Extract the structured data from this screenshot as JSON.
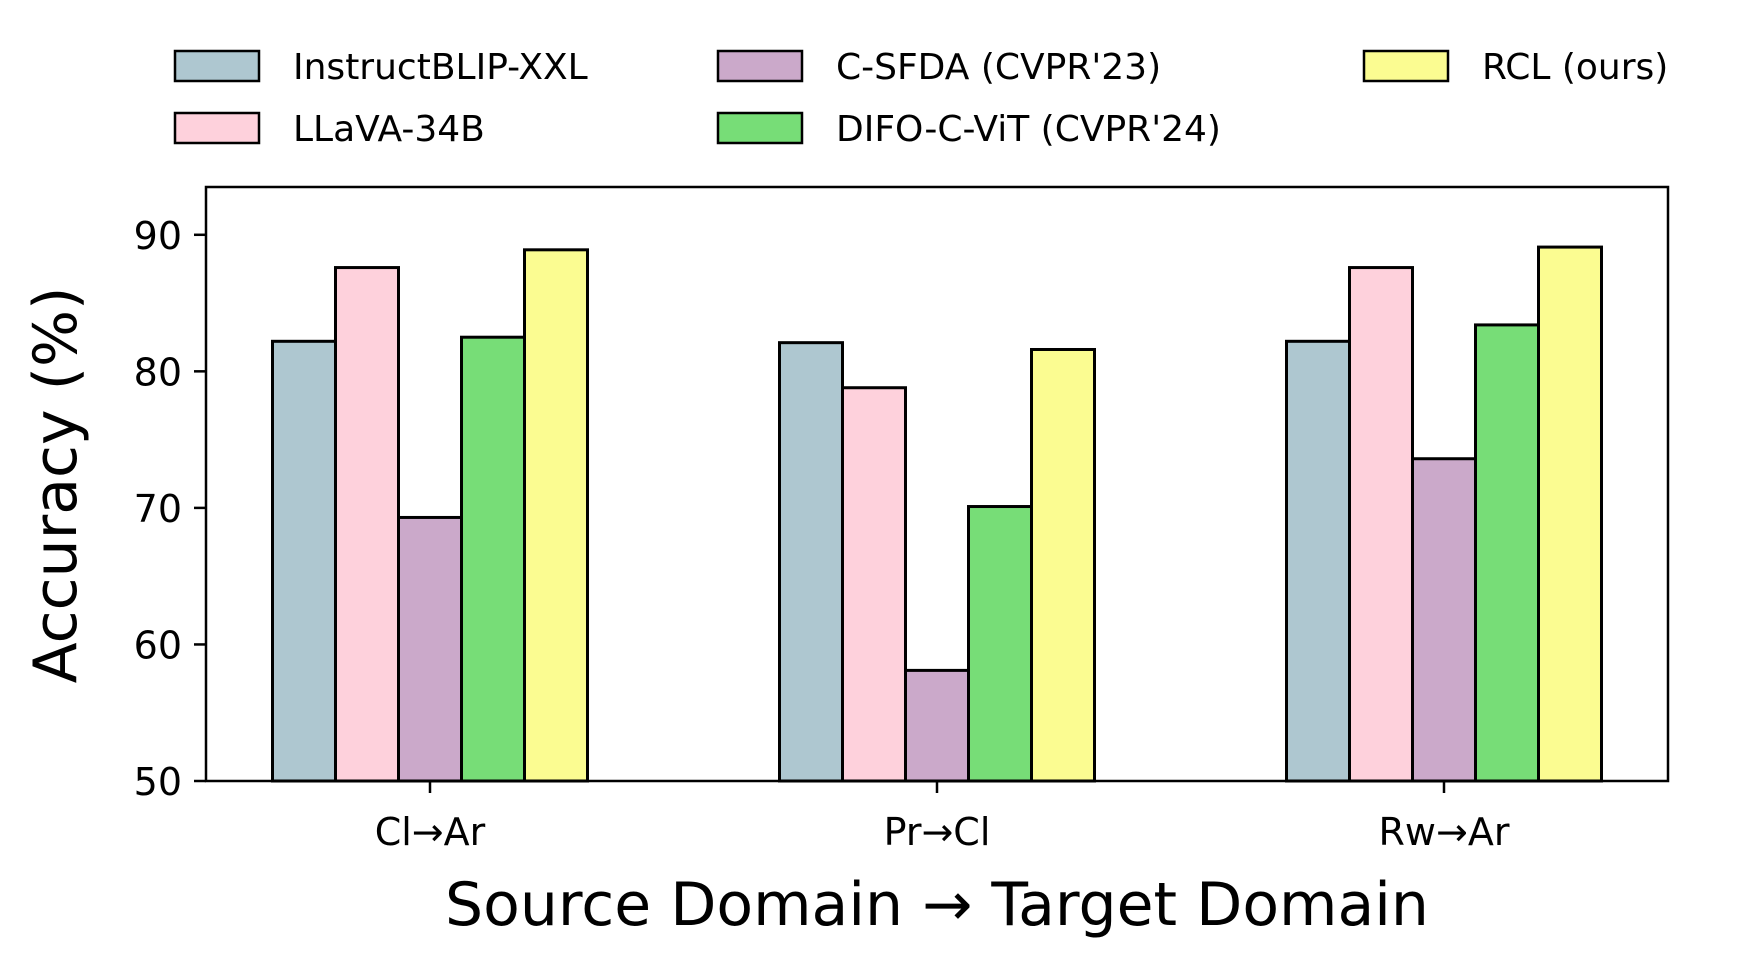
{
  "chart_data": {
    "type": "bar",
    "title": "",
    "xlabel": "Source Domain → Target Domain",
    "ylabel": "Accuracy (%)",
    "ylim": [
      50,
      93.5
    ],
    "yticks": [
      50,
      60,
      70,
      80,
      90
    ],
    "categories": [
      "Cl→Ar",
      "Pr→Cl",
      "Rw→Ar"
    ],
    "series": [
      {
        "name": "InstructBLIP-XXL",
        "color": "#aec7d0",
        "values": [
          82.2,
          82.1,
          82.2
        ]
      },
      {
        "name": "LLaVA-34B",
        "color": "#fed1dc",
        "values": [
          87.6,
          78.8,
          87.6
        ]
      },
      {
        "name": "C-SFDA (CVPR'23)",
        "color": "#cba9ca",
        "values": [
          69.3,
          58.1,
          73.6
        ]
      },
      {
        "name": "DIFO-C-ViT (CVPR'24)",
        "color": "#77dd77",
        "values": [
          82.5,
          70.1,
          83.4
        ]
      },
      {
        "name": "RCL (ours)",
        "color": "#fbfc91",
        "values": [
          88.9,
          81.6,
          89.1
        ]
      }
    ],
    "legend_position": "top",
    "grid": false,
    "edge_color": "#000000"
  }
}
